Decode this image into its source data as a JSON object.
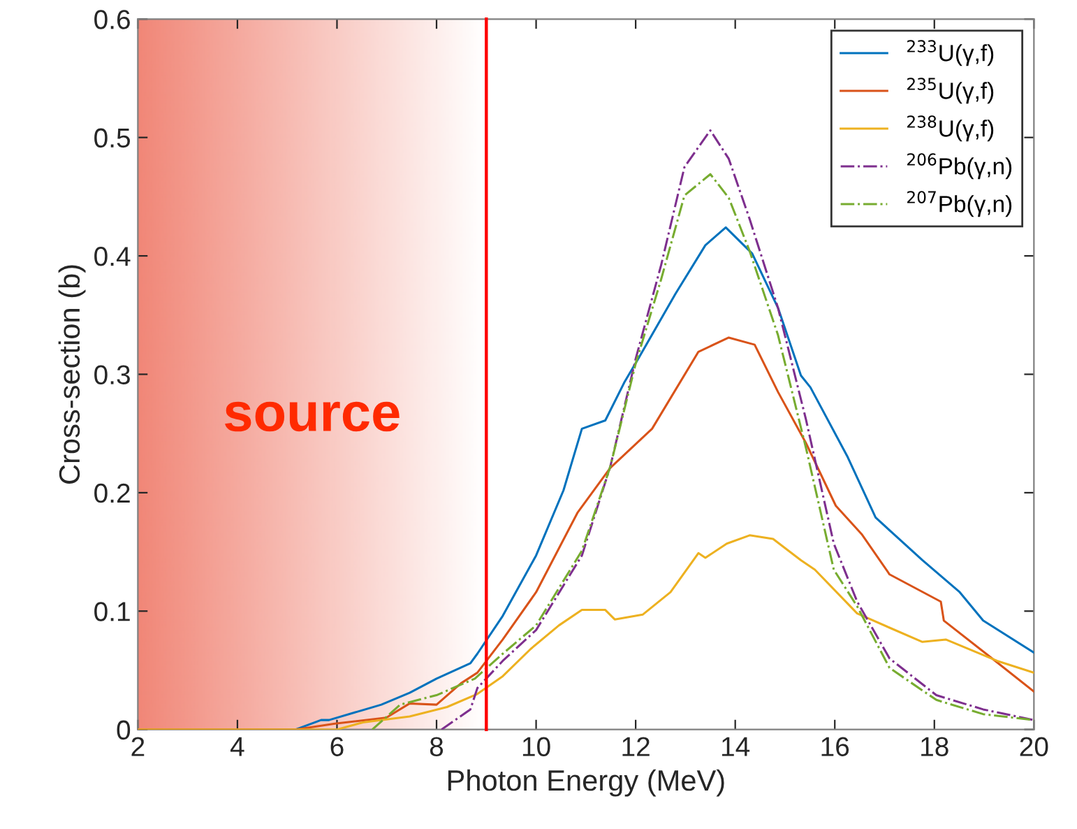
{
  "chart_data": {
    "type": "line",
    "xlabel": "Photon Energy (MeV)",
    "ylabel": "Cross-section (b)",
    "xlim": [
      2,
      20
    ],
    "xticks": [
      2,
      4,
      6,
      8,
      10,
      12,
      14,
      16,
      18,
      20
    ],
    "ylim": [
      0,
      0.6
    ],
    "yticks": [
      0,
      0.1,
      0.2,
      0.3,
      0.4,
      0.5,
      0.6
    ],
    "grid": false,
    "legend": "top right",
    "marker": "none",
    "bands": [
      {
        "axis": "x",
        "from": 2,
        "to": 9,
        "label": "source",
        "color": "#f08070"
      }
    ],
    "ref_lines": [
      {
        "axis": "x",
        "value": 9,
        "label": null,
        "color": "#ff0000"
      }
    ],
    "series": [
      {
        "name": "$^{233}$U(γ,f)",
        "color": "#0072bd",
        "line_style": "solid",
        "x": [
          2,
          5.17,
          5.68,
          5.84,
          6.89,
          7.46,
          8.0,
          8.68,
          8.82,
          9.33,
          10.0,
          10.55,
          10.92,
          11.39,
          11.77,
          12.05,
          12.8,
          13.4,
          13.81,
          14.34,
          14.86,
          15.32,
          15.51,
          16.26,
          16.82,
          17.76,
          18.51,
          18.98,
          20
        ],
        "values": [
          0,
          0,
          0.008,
          0.008,
          0.021,
          0.031,
          0.043,
          0.056,
          0.064,
          0.096,
          0.147,
          0.202,
          0.254,
          0.261,
          0.293,
          0.313,
          0.368,
          0.409,
          0.424,
          0.402,
          0.356,
          0.299,
          0.289,
          0.23,
          0.179,
          0.143,
          0.116,
          0.092,
          0.065
        ]
      },
      {
        "name": "$^{235}$U(γ,f)",
        "color": "#d95319",
        "line_style": "solid",
        "x": [
          2,
          5.17,
          5.96,
          6.99,
          7.46,
          8.0,
          8.49,
          8.82,
          9.33,
          10.0,
          10.83,
          11.49,
          12.33,
          13.26,
          13.87,
          14.39,
          14.86,
          15.42,
          16.02,
          16.54,
          17.1,
          18.13,
          18.19,
          19.16,
          20
        ],
        "values": [
          0,
          0,
          0.005,
          0.01,
          0.022,
          0.021,
          0.039,
          0.048,
          0.076,
          0.116,
          0.183,
          0.221,
          0.254,
          0.319,
          0.331,
          0.325,
          0.285,
          0.242,
          0.189,
          0.165,
          0.131,
          0.108,
          0.092,
          0.06,
          0.032
        ]
      },
      {
        "name": "$^{238}$U(γ,f)",
        "color": "#edb120",
        "line_style": "solid",
        "x": [
          2,
          6.0,
          6.52,
          7.46,
          8.21,
          8.82,
          9.33,
          9.89,
          10.46,
          10.92,
          11.39,
          11.58,
          12.14,
          12.7,
          13.26,
          13.4,
          13.83,
          14.29,
          14.76,
          15.32,
          15.6,
          16.45,
          17.1,
          17.76,
          18.23,
          19.26,
          20
        ],
        "values": [
          0,
          0,
          0.006,
          0.011,
          0.019,
          0.03,
          0.045,
          0.068,
          0.088,
          0.101,
          0.101,
          0.093,
          0.097,
          0.116,
          0.149,
          0.145,
          0.157,
          0.164,
          0.161,
          0.143,
          0.135,
          0.098,
          0.086,
          0.074,
          0.076,
          0.058,
          0.048
        ]
      },
      {
        "name": "$^{206}$Pb(γ,n)",
        "color": "#7e2f8e",
        "line_style": "dashdot",
        "x": [
          8.1,
          8.68,
          8.82,
          9.33,
          10.0,
          10.92,
          11.49,
          12.0,
          12.51,
          12.98,
          13.5,
          13.87,
          14.29,
          14.86,
          15.42,
          15.98,
          16.45,
          17.1,
          18.04,
          18.98,
          20
        ],
        "values": [
          0,
          0.017,
          0.035,
          0.058,
          0.084,
          0.147,
          0.222,
          0.313,
          0.392,
          0.475,
          0.506,
          0.482,
          0.431,
          0.356,
          0.262,
          0.157,
          0.108,
          0.06,
          0.029,
          0.017,
          0.008
        ]
      },
      {
        "name": "$^{207}$Pb(γ,n)",
        "color": "#77ac30",
        "line_style": "dashdot",
        "x": [
          6.71,
          7.27,
          8.0,
          8.77,
          9.33,
          10.0,
          10.92,
          11.49,
          12.0,
          12.51,
          12.98,
          13.5,
          13.87,
          14.29,
          14.86,
          15.42,
          15.98,
          16.45,
          17.1,
          18.04,
          18.98,
          20
        ],
        "values": [
          0,
          0.021,
          0.029,
          0.043,
          0.064,
          0.088,
          0.151,
          0.222,
          0.309,
          0.38,
          0.451,
          0.469,
          0.449,
          0.404,
          0.333,
          0.238,
          0.135,
          0.104,
          0.052,
          0.025,
          0.013,
          0.008
        ]
      }
    ]
  }
}
